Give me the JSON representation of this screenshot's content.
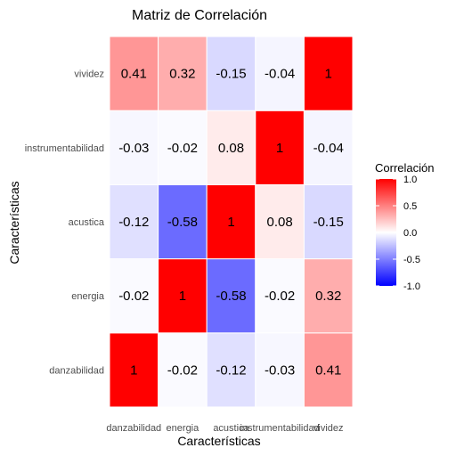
{
  "chart_data": {
    "type": "heatmap",
    "title": "Matriz de Correlación",
    "xlabel": "Características",
    "ylabel": "Características",
    "x_categories": [
      "danzabilidad",
      "energia",
      "acustica",
      "instrumentabilidad",
      "vividez"
    ],
    "y_categories": [
      "danzabilidad",
      "energia",
      "acustica",
      "instrumentabilidad",
      "vividez"
    ],
    "values": [
      [
        1,
        -0.02,
        -0.12,
        -0.03,
        0.41
      ],
      [
        -0.02,
        1,
        -0.58,
        -0.02,
        0.32
      ],
      [
        -0.12,
        -0.58,
        1,
        0.08,
        -0.15
      ],
      [
        -0.03,
        -0.02,
        0.08,
        1,
        -0.04
      ],
      [
        0.41,
        0.32,
        -0.15,
        -0.04,
        1
      ]
    ],
    "color_scale": {
      "low": "#0000ff",
      "mid": "#ffffff",
      "high": "#ff0000",
      "limits": [
        -1,
        1
      ]
    },
    "legend": {
      "title": "Correlación",
      "ticks": [
        "1.0",
        "0.5",
        "0.0",
        "-0.5",
        "-1.0"
      ],
      "tick_values": [
        1,
        0.5,
        0,
        -0.5,
        -1
      ],
      "placement": "right"
    },
    "grid": false
  }
}
